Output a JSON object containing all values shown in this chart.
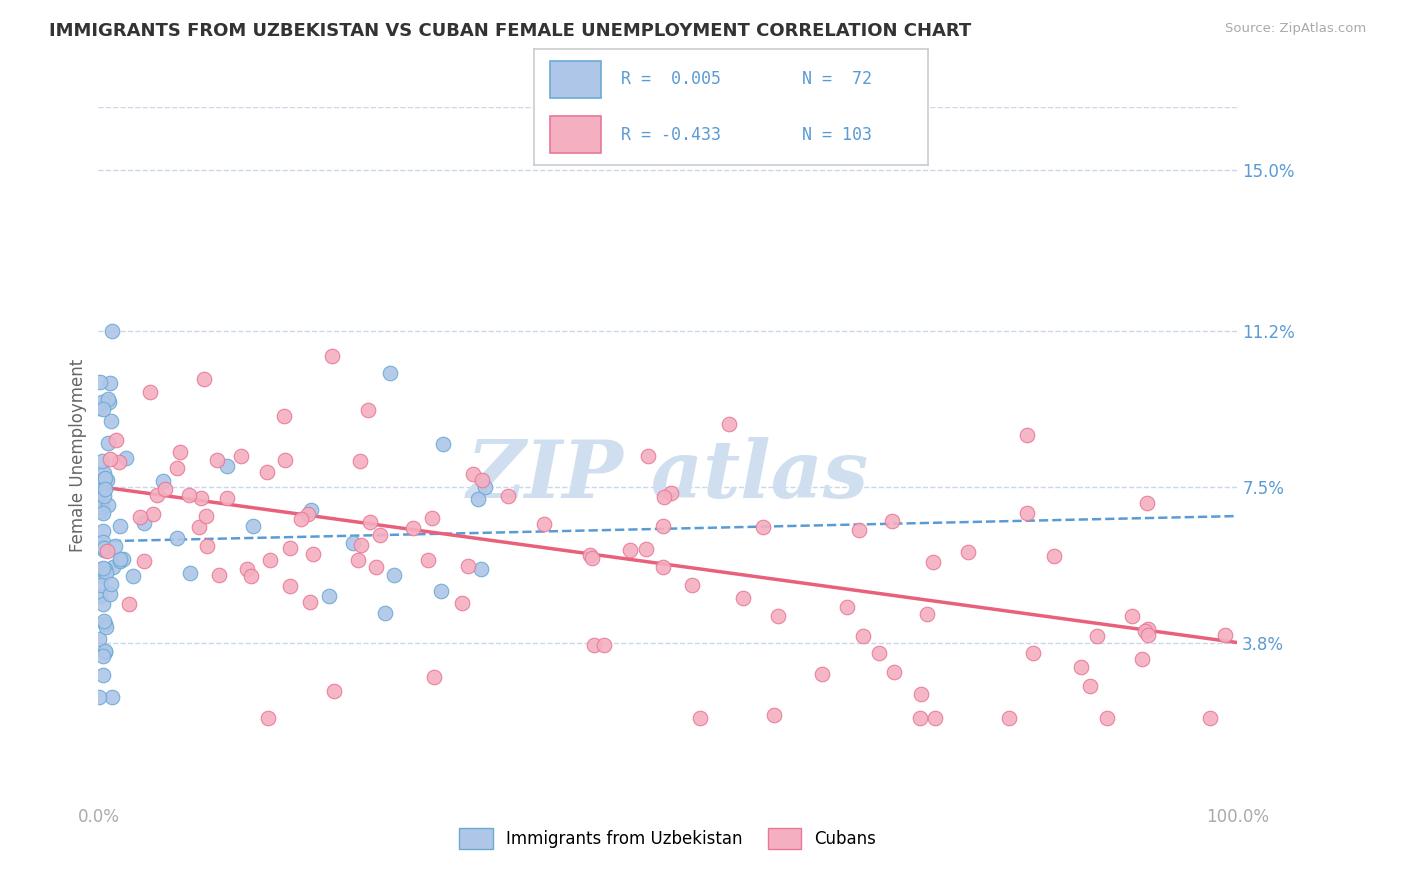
{
  "title": "IMMIGRANTS FROM UZBEKISTAN VS CUBAN FEMALE UNEMPLOYMENT CORRELATION CHART",
  "source_text": "Source: ZipAtlas.com",
  "ylabel": "Female Unemployment",
  "xlim": [
    0.0,
    1.0
  ],
  "ylim": [
    0.0,
    0.165
  ],
  "yticks": [
    0.038,
    0.075,
    0.112,
    0.15
  ],
  "ytick_labels": [
    "3.8%",
    "7.5%",
    "11.2%",
    "15.0%"
  ],
  "xtick_labels": [
    "0.0%",
    "100.0%"
  ],
  "legend_r1_label": "R =  0.005",
  "legend_n1_label": "N =  72",
  "legend_r2_label": "R = -0.433",
  "legend_n2_label": "N = 103",
  "blue_fill": "#aec6e8",
  "blue_edge": "#6aaad4",
  "blue_line_color": "#5b9bd5",
  "pink_fill": "#f4afc0",
  "pink_edge": "#e87898",
  "pink_line_color": "#e8607a",
  "text_color": "#5b9bd5",
  "title_color": "#333333",
  "ylabel_color": "#666666",
  "watermark_color": "#d0dff0",
  "grid_color": "#c8d8ea",
  "background_color": "#ffffff",
  "legend_text_color": "#5b9bd5",
  "blue_trend_x": [
    0.0,
    1.0
  ],
  "blue_trend_y": [
    0.062,
    0.068
  ],
  "pink_trend_x": [
    0.0,
    1.0
  ],
  "pink_trend_y": [
    0.075,
    0.038
  ]
}
